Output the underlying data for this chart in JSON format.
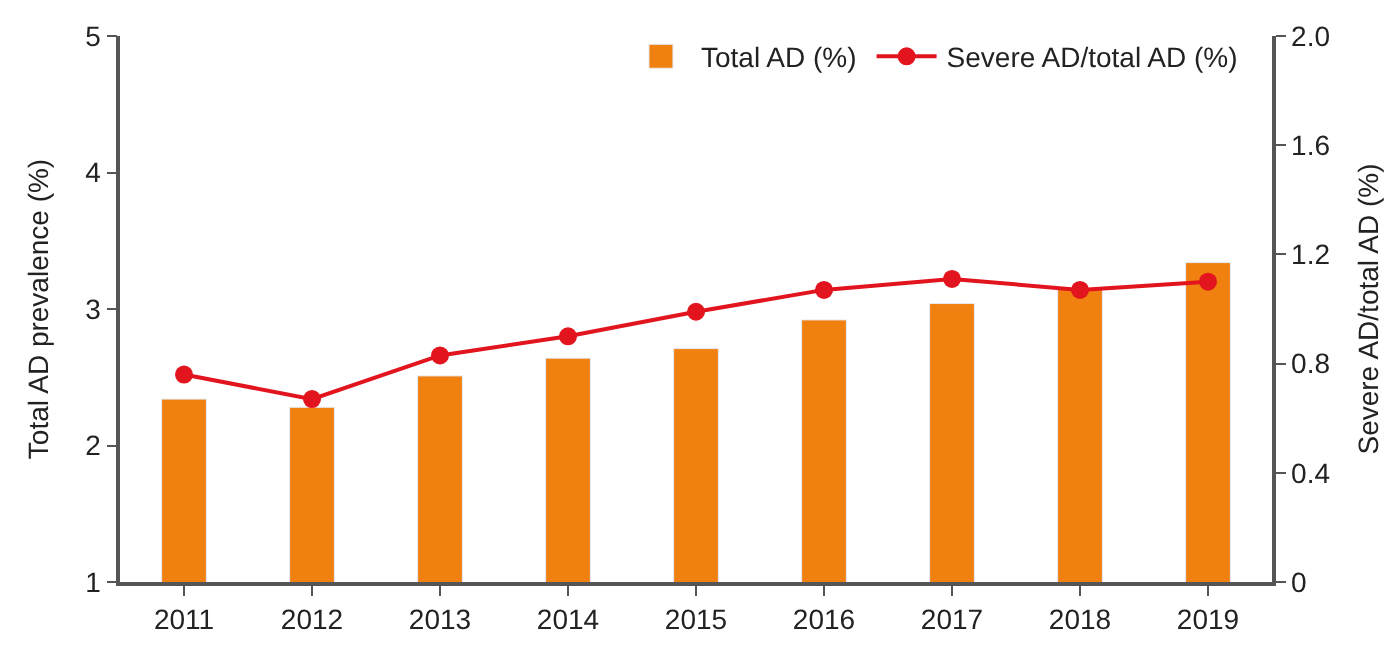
{
  "chart_data": {
    "type": "bar",
    "categories": [
      "2011",
      "2012",
      "2013",
      "2014",
      "2015",
      "2016",
      "2017",
      "2018",
      "2019"
    ],
    "series": [
      {
        "name": "Total AD (%)",
        "color": "#f08010",
        "values": [
          2.34,
          2.28,
          2.51,
          2.64,
          2.71,
          2.92,
          3.04,
          3.15,
          3.34
        ]
      },
      {
        "name": "Severe AD/total AD (%)",
        "type": "line",
        "axis": "y2",
        "color": "#e2141e",
        "marker": "circle",
        "values": [
          0.76,
          0.67,
          0.83,
          0.9,
          0.99,
          1.07,
          1.11,
          1.07,
          1.1
        ]
      }
    ],
    "ylabel": "Total AD prevalence (%)",
    "y2label": "Severe AD/total AD (%)",
    "ylim": [
      1,
      5
    ],
    "yticks": [
      1,
      2,
      3,
      4,
      5
    ],
    "y2lim": [
      0,
      2.0
    ],
    "y2ticks": [
      0,
      {
        "value": 0.4,
        "label": "0.4"
      },
      {
        "value": 0.8,
        "label": "0.8"
      },
      {
        "value": 1.2,
        "label": "1.2"
      },
      {
        "value": 1.6,
        "label": "1.6"
      },
      {
        "value": 2.0,
        "label": "2.0"
      }
    ],
    "legend": "top right"
  }
}
